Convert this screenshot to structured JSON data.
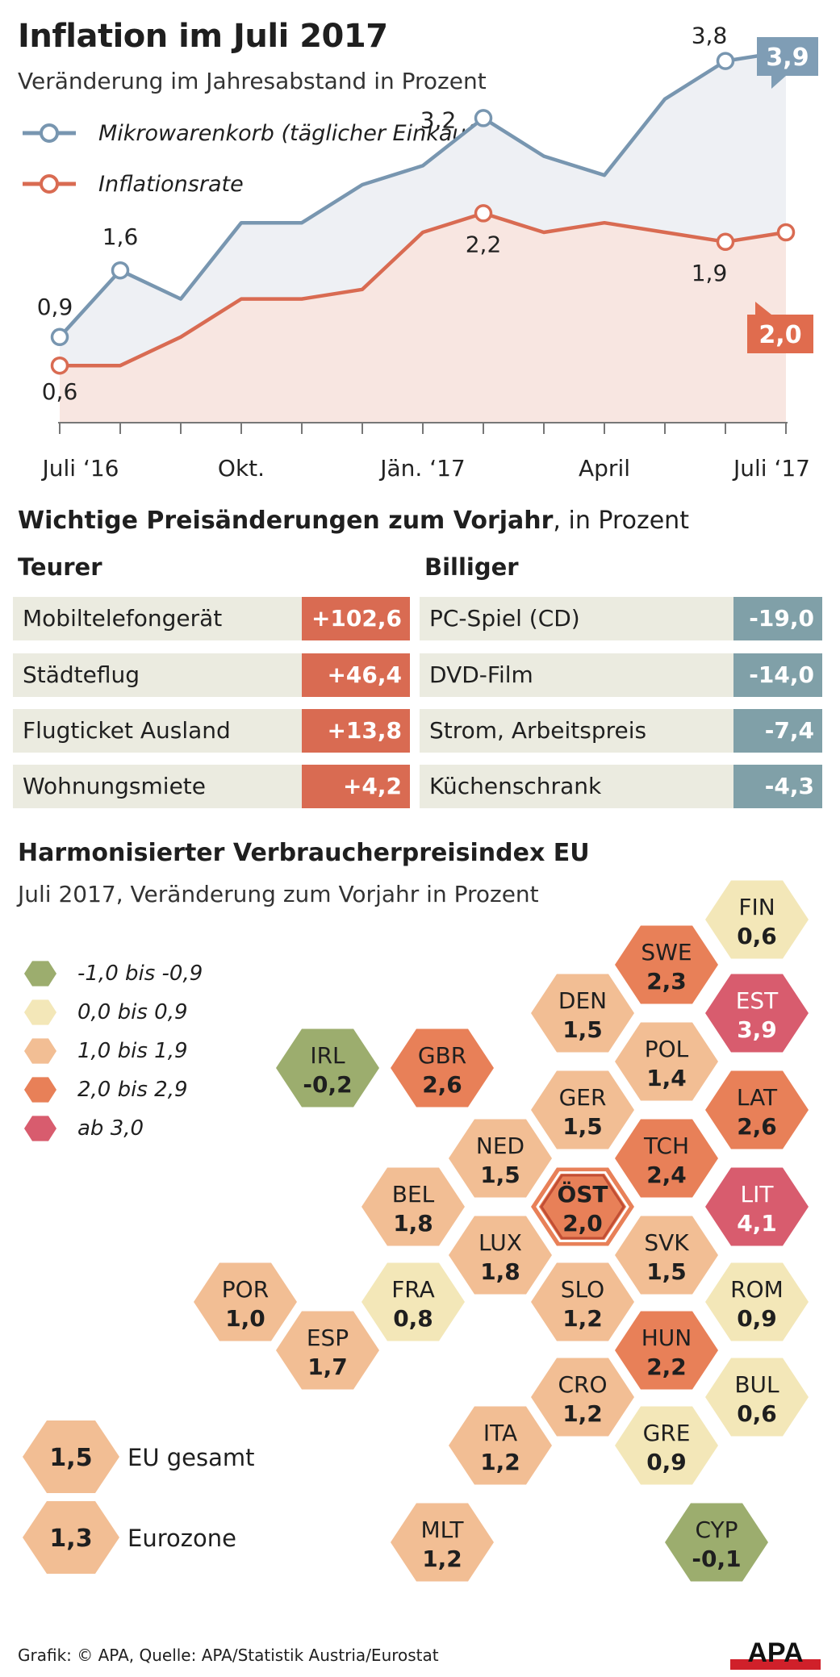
{
  "header": {
    "title": "Inflation im Juli 2017",
    "subtitle": "Veränderung im Jahresabstand in Prozent"
  },
  "colors": {
    "blue": "#7896b0",
    "blue_fill": "#eef0f4",
    "red": "#d96b52",
    "red_fill": "#f8e6e1",
    "label_blue": "#7f9db5",
    "label_red": "#e06c4e",
    "neg_box": "#80a0a8",
    "row_bg": "#ebebe0",
    "hex_green": "#9cad6e",
    "hex_yellow": "#f3e7b8",
    "hex_light": "#f2be94",
    "hex_orange": "#e88058",
    "hex_red": "#d85c6e"
  },
  "chart_data": {
    "type": "line",
    "title": "Inflation im Juli 2017",
    "subtitle": "Veränderung im Jahresabstand in Prozent",
    "x": [
      "2016-07",
      "2016-08",
      "2016-09",
      "2016-10",
      "2016-11",
      "2016-12",
      "2017-01",
      "2017-02",
      "2017-03",
      "2017-04",
      "2017-05",
      "2017-06",
      "2017-07"
    ],
    "x_tick_labels": [
      "Juli ‘16",
      "Okt.",
      "Jän. ‘17",
      "April",
      "Juli ‘17"
    ],
    "series": [
      {
        "name": "Mikrowarenkorb (täglicher Einkauf)",
        "values": [
          0.9,
          1.6,
          1.3,
          2.1,
          2.1,
          2.5,
          2.7,
          3.2,
          2.8,
          2.6,
          3.4,
          3.8,
          3.9
        ],
        "labels": [
          {
            "index": 0,
            "text": "0,9"
          },
          {
            "index": 1,
            "text": "1,6"
          },
          {
            "index": 7,
            "text": "3,2"
          },
          {
            "index": 11,
            "text": "3,8"
          }
        ],
        "highlight": {
          "index": 12,
          "text": "3,9"
        }
      },
      {
        "name": "Inflationsrate",
        "values": [
          0.6,
          0.6,
          0.9,
          1.3,
          1.3,
          1.4,
          2.0,
          2.2,
          2.0,
          2.1,
          2.0,
          1.9,
          2.0
        ],
        "labels": [
          {
            "index": 0,
            "text": "0,6"
          },
          {
            "index": 7,
            "text": "2,2"
          },
          {
            "index": 11,
            "text": "1,9"
          }
        ],
        "highlight": {
          "index": 12,
          "text": "2,0"
        }
      }
    ],
    "ylim": [
      0,
      4.2
    ],
    "grid": false
  },
  "prices": {
    "title_bold": "Wichtige Preisänderungen zum Vorjahr",
    "title_rest": ", in Prozent",
    "teurer_label": "Teurer",
    "billiger_label": "Billiger",
    "teurer": [
      {
        "name": "Mobiltelefongerät",
        "value": "+102,6"
      },
      {
        "name": "Städteflug",
        "value": "+46,4"
      },
      {
        "name": "Flugticket Ausland",
        "value": "+13,8"
      },
      {
        "name": "Wohnungsmiete",
        "value": "+4,2"
      }
    ],
    "billiger": [
      {
        "name": "PC-Spiel (CD)",
        "value": "-19,0"
      },
      {
        "name": "DVD-Film",
        "value": "-14,0"
      },
      {
        "name": "Strom, Arbeitspreis",
        "value": "-7,4"
      },
      {
        "name": "Küchenschrank",
        "value": "-4,3"
      }
    ]
  },
  "hicp": {
    "title": "Harmonisierter Verbraucherpreisindex EU",
    "subtitle": "Juli 2017, Veränderung zum Vorjahr in Prozent",
    "legend": [
      {
        "label": "-1,0 bis -0,9",
        "color": "#9cad6e"
      },
      {
        "label": "0,0 bis 0,9",
        "color": "#f3e7b8"
      },
      {
        "label": "1,0 bis 1,9",
        "color": "#f2be94"
      },
      {
        "label": "2,0 bis 2,9",
        "color": "#e88058"
      },
      {
        "label": "ab 3,0",
        "color": "#d85c6e"
      }
    ],
    "countries": [
      {
        "code": "FIN",
        "value": "0,6",
        "cls": "yellow"
      },
      {
        "code": "SWE",
        "value": "2,3",
        "cls": "orange"
      },
      {
        "code": "EST",
        "value": "3,9",
        "cls": "red"
      },
      {
        "code": "DEN",
        "value": "1,5",
        "cls": "light"
      },
      {
        "code": "POL",
        "value": "1,4",
        "cls": "light"
      },
      {
        "code": "IRL",
        "value": "-0,2",
        "cls": "green"
      },
      {
        "code": "GBR",
        "value": "2,6",
        "cls": "orange"
      },
      {
        "code": "GER",
        "value": "1,5",
        "cls": "light"
      },
      {
        "code": "LAT",
        "value": "2,6",
        "cls": "orange"
      },
      {
        "code": "NED",
        "value": "1,5",
        "cls": "light"
      },
      {
        "code": "TCH",
        "value": "2,4",
        "cls": "orange"
      },
      {
        "code": "BEL",
        "value": "1,8",
        "cls": "light"
      },
      {
        "code": "ÖST",
        "value": "2,0",
        "cls": "orange",
        "highlight": true
      },
      {
        "code": "LIT",
        "value": "4,1",
        "cls": "red"
      },
      {
        "code": "LUX",
        "value": "1,8",
        "cls": "light"
      },
      {
        "code": "SVK",
        "value": "1,5",
        "cls": "light"
      },
      {
        "code": "POR",
        "value": "1,0",
        "cls": "light"
      },
      {
        "code": "FRA",
        "value": "0,8",
        "cls": "yellow"
      },
      {
        "code": "SLO",
        "value": "1,2",
        "cls": "light"
      },
      {
        "code": "ROM",
        "value": "0,9",
        "cls": "yellow"
      },
      {
        "code": "ESP",
        "value": "1,7",
        "cls": "light"
      },
      {
        "code": "HUN",
        "value": "2,2",
        "cls": "orange"
      },
      {
        "code": "CRO",
        "value": "1,2",
        "cls": "light"
      },
      {
        "code": "BUL",
        "value": "0,6",
        "cls": "yellow"
      },
      {
        "code": "ITA",
        "value": "1,2",
        "cls": "light"
      },
      {
        "code": "GRE",
        "value": "0,9",
        "cls": "yellow"
      },
      {
        "code": "MLT",
        "value": "1,2",
        "cls": "light"
      },
      {
        "code": "CYP",
        "value": "-0,1",
        "cls": "green"
      }
    ],
    "totals": [
      {
        "value": "1,5",
        "label": "EU gesamt"
      },
      {
        "value": "1,3",
        "label": "Eurozone"
      }
    ]
  },
  "footer": {
    "text": "Grafik: © APA, Quelle: APA/Statistik Austria/Eurostat",
    "logo": "APA"
  }
}
